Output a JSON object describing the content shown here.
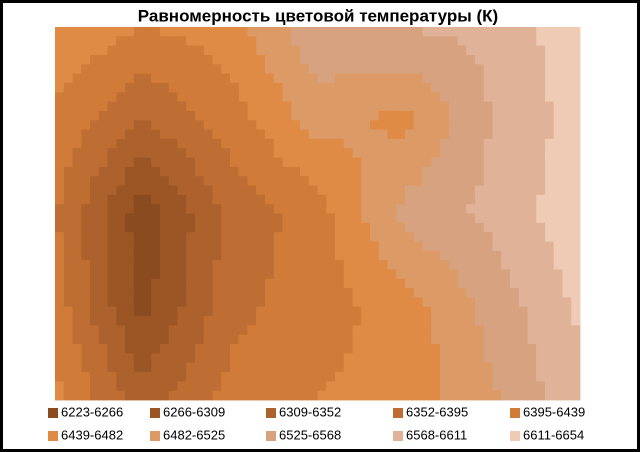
{
  "chart_data": {
    "type": "contour",
    "title": "Равномерность  цветовой температуры (К)",
    "z": [
      [
        6480,
        6440,
        6460,
        6560,
        6570,
        6580,
        6640
      ],
      [
        6430,
        6350,
        6420,
        6500,
        6470,
        6570,
        6630
      ],
      [
        6400,
        6240,
        6360,
        6420,
        6540,
        6580,
        6640
      ],
      [
        6420,
        6250,
        6380,
        6420,
        6460,
        6540,
        6620
      ],
      [
        6450,
        6330,
        6410,
        6440,
        6450,
        6520,
        6600
      ]
    ],
    "series": [
      {
        "name": "6223-6266",
        "color": "#8a4b1e"
      },
      {
        "name": "6266-6309",
        "color": "#9c5626"
      },
      {
        "name": "6309-6352",
        "color": "#ad622d"
      },
      {
        "name": "6352-6395",
        "color": "#bf6e33"
      },
      {
        "name": "6395-6439",
        "color": "#d07b38"
      },
      {
        "name": "6439-6482",
        "color": "#df8a45"
      },
      {
        "name": "6482-6525",
        "color": "#dc9a66"
      },
      {
        "name": "6525-6568",
        "color": "#d6a27f"
      },
      {
        "name": "6568-6611",
        "color": "#e0b398"
      },
      {
        "name": "6611-6654",
        "color": "#efcbb6"
      }
    ]
  }
}
